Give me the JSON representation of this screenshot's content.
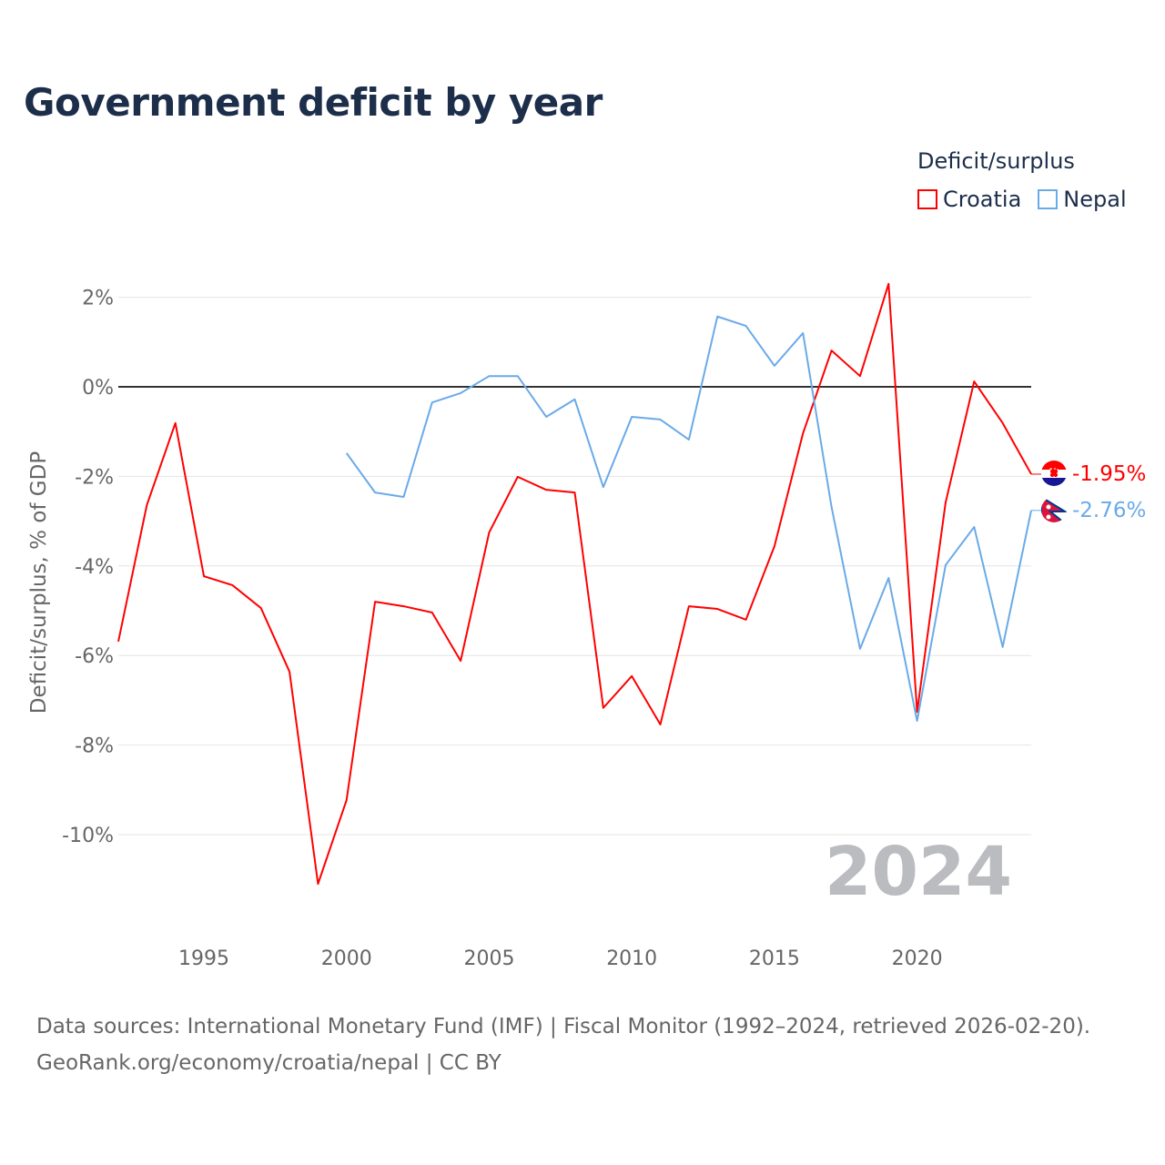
{
  "title": "Government deficit by year",
  "legend": {
    "title": "Deficit/surplus",
    "items": [
      {
        "label": "Croatia",
        "color": "#ff0000"
      },
      {
        "label": "Nepal",
        "color": "#6aaae8"
      }
    ]
  },
  "year_watermark": "2024",
  "source_line1": "Data sources: International Monetary Fund (IMF) | Fiscal Monitor (1992–2024, retrieved 2026-02-20).",
  "source_line2": "GeoRank.org/economy/croatia/nepal | CC BY",
  "chart_data": {
    "type": "line",
    "title": "Government deficit by year",
    "xlabel": "",
    "ylabel": "Deficit/surplus, % of GDP",
    "xlim": [
      1992,
      2024
    ],
    "ylim": [
      -12,
      3
    ],
    "x_ticks": [
      1995,
      2000,
      2005,
      2010,
      2015,
      2020
    ],
    "y_ticks": [
      {
        "v": 2,
        "label": "2%"
      },
      {
        "v": 0,
        "label": "0%"
      },
      {
        "v": -2,
        "label": "-2%"
      },
      {
        "v": -4,
        "label": "-4%"
      },
      {
        "v": -6,
        "label": "-6%"
      },
      {
        "v": -8,
        "label": "-8%"
      },
      {
        "v": -10,
        "label": "-10%"
      }
    ],
    "legend_position": "top-right",
    "series": [
      {
        "name": "Croatia",
        "color": "#ff0000",
        "end_label": "-1.95%",
        "x": [
          1992,
          1993,
          1994,
          1995,
          1996,
          1997,
          1998,
          1999,
          2000,
          2001,
          2002,
          2003,
          2004,
          2005,
          2006,
          2007,
          2008,
          2009,
          2010,
          2011,
          2012,
          2013,
          2014,
          2015,
          2016,
          2017,
          2018,
          2019,
          2020,
          2021,
          2022,
          2023,
          2024
        ],
        "values": [
          -5.69,
          -2.64,
          -0.81,
          -4.23,
          -4.43,
          -4.94,
          -6.36,
          -11.1,
          -9.23,
          -4.8,
          -4.9,
          -5.04,
          -6.12,
          -3.25,
          -2.01,
          -2.3,
          -2.36,
          -7.17,
          -6.46,
          -7.54,
          -4.9,
          -4.96,
          -5.2,
          -3.56,
          -1.04,
          0.81,
          0.24,
          2.3,
          -7.26,
          -2.58,
          0.12,
          -0.81,
          -1.95
        ]
      },
      {
        "name": "Nepal",
        "color": "#6aaae8",
        "end_label": "-2.76%",
        "x": [
          2000,
          2001,
          2002,
          2003,
          2004,
          2005,
          2006,
          2007,
          2008,
          2009,
          2010,
          2011,
          2012,
          2013,
          2014,
          2015,
          2016,
          2017,
          2018,
          2019,
          2020,
          2021,
          2022,
          2023,
          2024
        ],
        "values": [
          -1.48,
          -2.36,
          -2.46,
          -0.35,
          -0.14,
          0.24,
          0.24,
          -0.67,
          -0.28,
          -2.24,
          -0.67,
          -0.73,
          -1.18,
          1.57,
          1.36,
          0.47,
          1.2,
          -2.68,
          -5.85,
          -4.27,
          -7.46,
          -3.98,
          -3.13,
          -5.81,
          -2.76
        ]
      }
    ]
  }
}
